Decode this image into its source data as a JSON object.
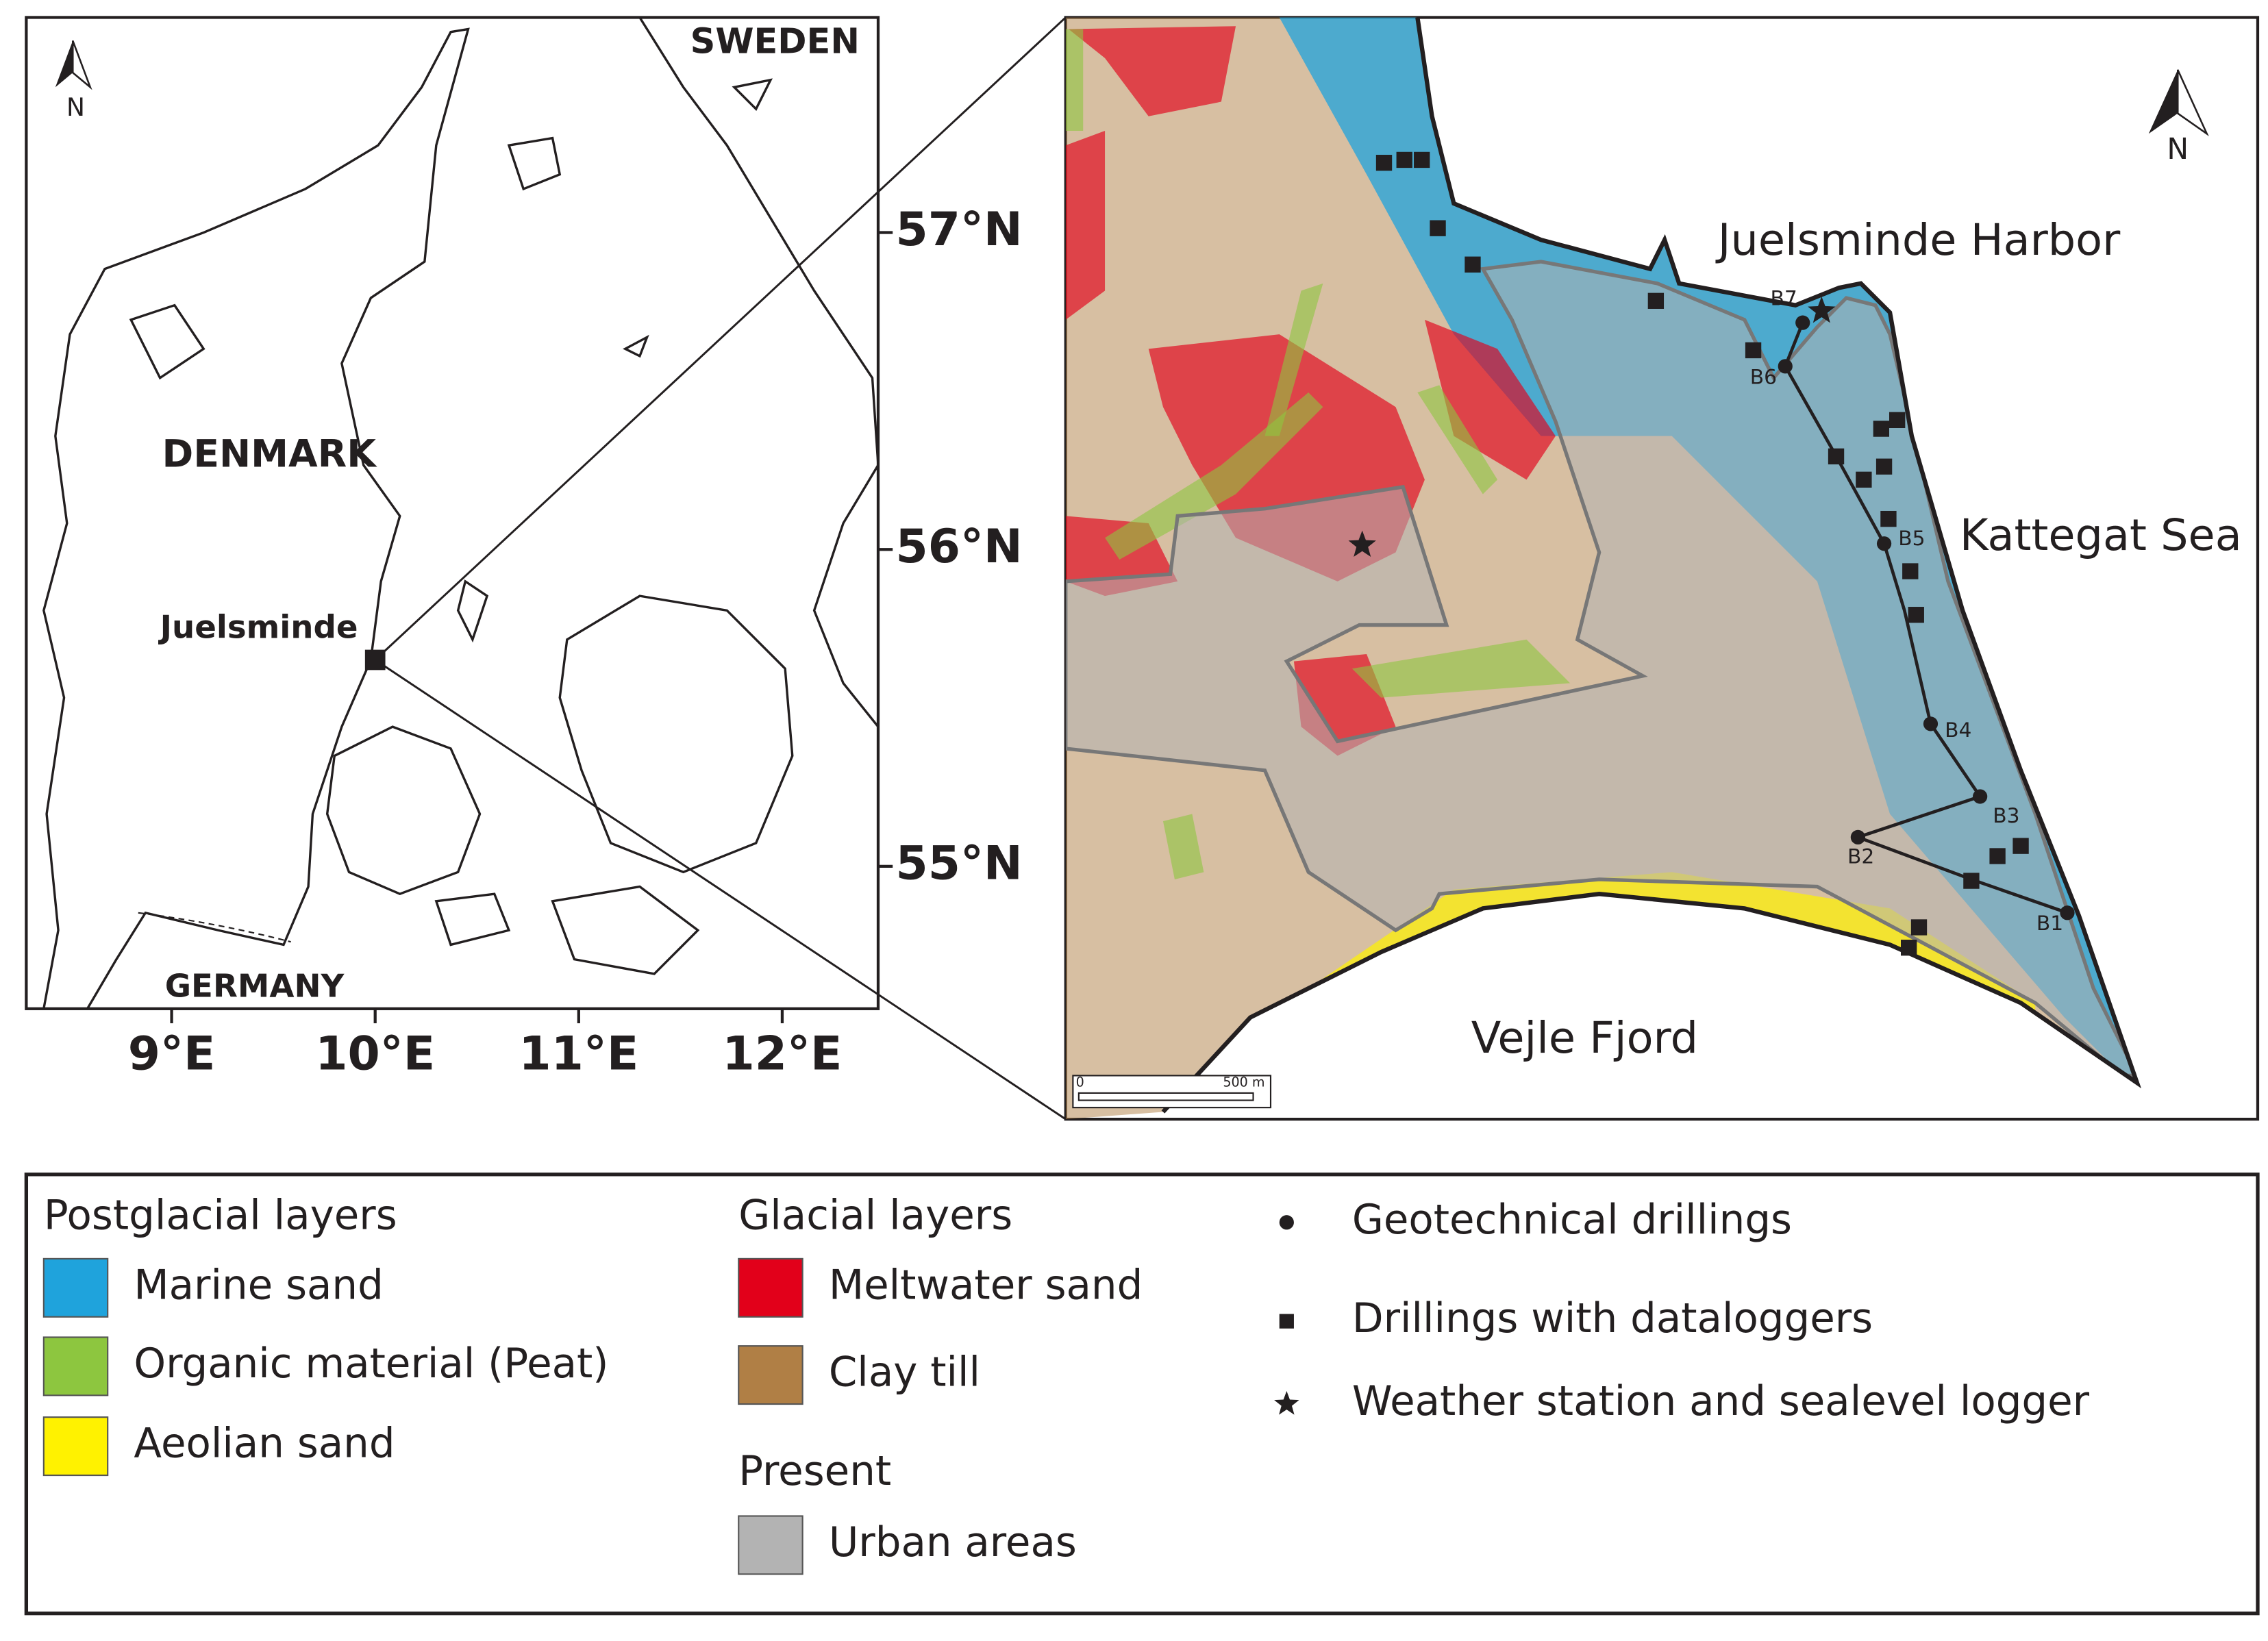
{
  "left_map": {
    "north_label": "N",
    "countries": [
      "SWEDEN",
      "DENMARK",
      "GERMANY"
    ],
    "place": "Juelsminde",
    "lat_labels": [
      "57°N",
      "56°N",
      "55°N"
    ],
    "lon_labels": [
      "9°E",
      "10°E",
      "11°E",
      "12°E"
    ]
  },
  "right_map": {
    "north_label": "N",
    "places": [
      "Juelsminde Harbor",
      "Kattegat Sea",
      "Vejle Fjord"
    ],
    "boreholes": [
      "B1",
      "B2",
      "B3",
      "B4",
      "B5",
      "B6",
      "B7"
    ],
    "scale": {
      "start": "0",
      "end": "500 m"
    }
  },
  "legend": {
    "groups": [
      {
        "title": "Postglacial layers",
        "items": [
          {
            "label": "Marine sand",
            "color": "#1fa3dc"
          },
          {
            "label": "Organic material (Peat)",
            "color": "#8dc63f"
          },
          {
            "label": "Aeolian sand",
            "color": "#fff200"
          }
        ]
      },
      {
        "title": "Glacial layers",
        "items": [
          {
            "label": "Meltwater sand",
            "color": "#e2001a"
          },
          {
            "label": "Clay till",
            "color": "#b07f45"
          }
        ]
      },
      {
        "title": "Present",
        "items": [
          {
            "label": "Urban areas",
            "color": "#b3b3b3"
          }
        ]
      }
    ],
    "symbols": [
      {
        "symbol": "circle",
        "label": "Geotechnical drillings"
      },
      {
        "symbol": "square",
        "label": "Drillings with dataloggers"
      },
      {
        "symbol": "star",
        "label": "Weather station and sealevel logger"
      }
    ]
  }
}
